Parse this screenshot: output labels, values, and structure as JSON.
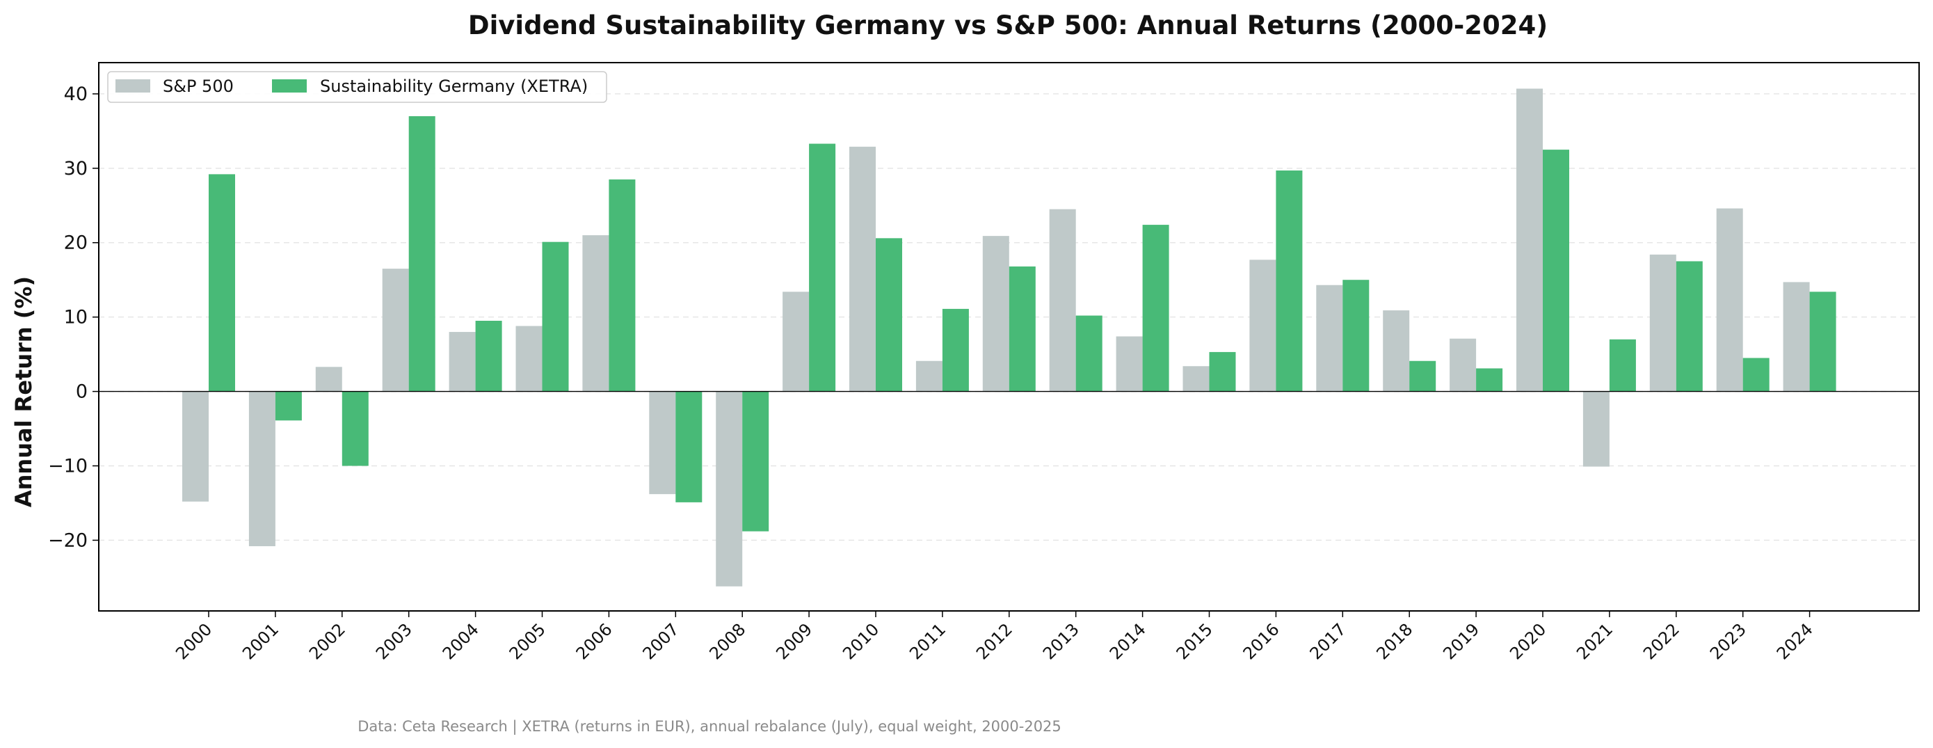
{
  "chart_data": {
    "type": "bar",
    "title": "Dividend Sustainability Germany vs S&P 500: Annual Returns (2000-2024)",
    "xlabel": "",
    "ylabel": "Annual Return (%)",
    "ylim": [
      -29.5,
      44.2
    ],
    "yticks": [
      -20,
      -10,
      0,
      10,
      20,
      30,
      40
    ],
    "ytick_labels": [
      "−20",
      "−10",
      "0",
      "10",
      "20",
      "30",
      "40"
    ],
    "grid": "y-dashed",
    "legend_position": "top-left",
    "categories": [
      "2000",
      "2001",
      "2002",
      "2003",
      "2004",
      "2005",
      "2006",
      "2007",
      "2008",
      "2009",
      "2010",
      "2011",
      "2012",
      "2013",
      "2014",
      "2015",
      "2016",
      "2017",
      "2018",
      "2019",
      "2020",
      "2021",
      "2022",
      "2023",
      "2024"
    ],
    "series": [
      {
        "name": "S&P 500",
        "color": "#bfc9c9",
        "values": [
          -14.8,
          -20.8,
          3.3,
          16.5,
          8.0,
          8.8,
          21.0,
          -13.8,
          -26.2,
          13.4,
          32.9,
          4.1,
          20.9,
          24.5,
          7.4,
          3.4,
          17.7,
          14.3,
          10.9,
          7.1,
          40.7,
          -10.1,
          18.4,
          24.6,
          14.7
        ]
      },
      {
        "name": "Sustainability Germany (XETRA)",
        "color": "#48ba77",
        "values": [
          29.2,
          -3.9,
          -10.0,
          37.0,
          9.5,
          20.1,
          28.5,
          -14.9,
          -18.8,
          33.3,
          20.6,
          11.1,
          16.8,
          10.2,
          22.4,
          5.3,
          29.7,
          15.0,
          4.1,
          3.1,
          32.5,
          7.0,
          17.5,
          4.5,
          13.4
        ]
      }
    ],
    "footer": "Data: Ceta Research | XETRA (returns in EUR), annual rebalance (July), equal weight, 2000-2025"
  }
}
